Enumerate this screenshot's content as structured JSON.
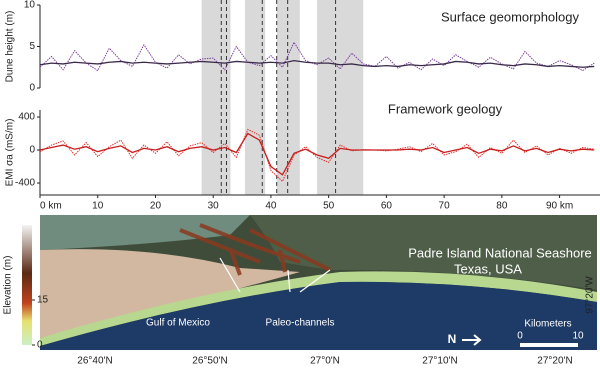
{
  "chart_data": [
    {
      "type": "line",
      "title": "Surface geomorphology",
      "ylabel": "Dune height (m)",
      "x": [
        0,
        2,
        4,
        6,
        8,
        10,
        12,
        14,
        16,
        18,
        20,
        22,
        24,
        26,
        28,
        30,
        32,
        34,
        36,
        38,
        40,
        42,
        44,
        46,
        48,
        50,
        52,
        54,
        56,
        58,
        60,
        62,
        64,
        66,
        68,
        70,
        72,
        74,
        76,
        78,
        80,
        82,
        84,
        86,
        88,
        90,
        92,
        94,
        96
      ],
      "series": [
        {
          "color": "#7b3f9e",
          "style": "dotted",
          "values": [
            2.5,
            3.8,
            2.2,
            4.5,
            3.0,
            2.1,
            4.8,
            3.3,
            2.6,
            5.2,
            3.1,
            2.4,
            4.0,
            2.9,
            3.5,
            3.6,
            2.2,
            5.0,
            3.1,
            2.7,
            3.9,
            2.5,
            5.5,
            3.3,
            2.8,
            3.6,
            2.3,
            4.2,
            2.9,
            2.6,
            3.8,
            2.4,
            3.1,
            2.2,
            3.5,
            2.7,
            4.0,
            3.2,
            2.5,
            3.7,
            2.9,
            2.3,
            4.4,
            3.0,
            2.6,
            3.3,
            2.8,
            2.1,
            3.0
          ]
        },
        {
          "color": "#3a2a4a",
          "style": "solid",
          "values": [
            2.8,
            3.0,
            2.9,
            3.1,
            3.0,
            2.9,
            3.1,
            3.2,
            3.0,
            3.1,
            3.0,
            2.9,
            3.0,
            3.1,
            3.2,
            3.1,
            3.0,
            3.2,
            3.1,
            3.0,
            3.1,
            3.0,
            3.3,
            3.1,
            3.0,
            3.0,
            2.8,
            2.9,
            2.7,
            2.6,
            2.7,
            2.6,
            2.8,
            2.7,
            2.8,
            2.9,
            3.2,
            3.1,
            2.9,
            3.0,
            2.8,
            2.7,
            2.9,
            2.8,
            2.6,
            2.7,
            2.6,
            2.5,
            2.6
          ]
        }
      ],
      "xlim": [
        0,
        97
      ],
      "ylim": [
        0,
        10
      ],
      "yticks": [
        0,
        5,
        10
      ],
      "shaded_ranges": [
        [
          28,
          33
        ],
        [
          35.5,
          39
        ],
        [
          41,
          45
        ],
        [
          48,
          56
        ]
      ],
      "dashed_x": [
        31.4,
        32.3,
        38.5,
        41,
        42.9,
        51.2
      ]
    },
    {
      "type": "line",
      "title": "Framework geology",
      "ylabel": "EMI σa (mS/m)",
      "x": [
        0,
        2,
        4,
        6,
        8,
        10,
        12,
        14,
        16,
        18,
        20,
        22,
        24,
        26,
        28,
        30,
        32,
        34,
        36,
        38,
        40,
        42,
        44,
        46,
        48,
        50,
        52,
        54,
        56,
        58,
        60,
        62,
        64,
        66,
        68,
        70,
        72,
        74,
        76,
        78,
        80,
        82,
        84,
        86,
        88,
        90,
        92,
        94,
        96
      ],
      "series": [
        {
          "color": "#e0302a",
          "style": "dotted",
          "values": [
            -20,
            60,
            110,
            -60,
            90,
            -80,
            40,
            120,
            -100,
            60,
            -40,
            100,
            -70,
            50,
            90,
            -30,
            80,
            -90,
            250,
            180,
            -250,
            -380,
            -60,
            40,
            -90,
            -150,
            60,
            -10,
            5,
            0,
            -10,
            10,
            40,
            -20,
            80,
            -60,
            -20,
            70,
            -90,
            30,
            -40,
            120,
            -30,
            50,
            -60,
            20,
            -40,
            30,
            10
          ]
        },
        {
          "color": "#c81e1e",
          "style": "solid",
          "values": [
            0,
            30,
            60,
            10,
            40,
            -20,
            20,
            50,
            -30,
            20,
            0,
            40,
            -20,
            20,
            40,
            0,
            30,
            -30,
            200,
            120,
            -200,
            -300,
            -40,
            10,
            -60,
            -100,
            20,
            0,
            0,
            0,
            0,
            0,
            10,
            0,
            30,
            -30,
            0,
            30,
            -40,
            10,
            -10,
            50,
            -10,
            20,
            -30,
            10,
            -10,
            10,
            0
          ]
        }
      ],
      "xlim": [
        0,
        97
      ],
      "ylim": [
        -545,
        485
      ],
      "yticks": [
        -400,
        0,
        400
      ],
      "xticks": [
        {
          "value": 0,
          "label": "0 km"
        },
        10,
        20,
        30,
        40,
        50,
        60,
        70,
        80,
        {
          "value": 90,
          "label": "90 km"
        }
      ]
    }
  ],
  "map": {
    "title": "Padre Island National Seashore",
    "subtitle": "Texas, USA",
    "labels": [
      "Gulf of Mexico",
      "Paleo-channels"
    ],
    "north": "N",
    "scale_title": "Kilometers",
    "scale_ticks": [
      0,
      10
    ],
    "colorbar": {
      "label": "Elevation (m)",
      "lim": [
        0,
        40
      ],
      "ticks": [
        0,
        15
      ]
    },
    "lat_labels": [
      "26°40'N",
      "26°50'N",
      "27°0'N",
      "27°10'N",
      "27°20'N"
    ],
    "lon_label": "97°20'W"
  }
}
